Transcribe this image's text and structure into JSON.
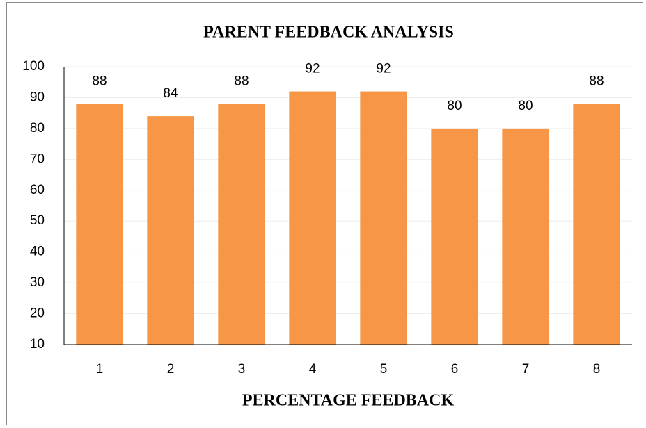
{
  "chart_data": {
    "type": "bar",
    "title": "PARENT FEEDBACK ANALYSIS",
    "x_label": "PERCENTAGE FEEDBACK",
    "categories": [
      "1",
      "2",
      "3",
      "4",
      "5",
      "6",
      "7",
      "8"
    ],
    "values": [
      88,
      84,
      88,
      92,
      92,
      80,
      80,
      88
    ],
    "color": "#f79646",
    "ylim": [
      10,
      100
    ],
    "yticks": [
      10,
      20,
      30,
      40,
      50,
      60,
      70,
      80,
      90,
      100
    ],
    "grid": true,
    "data_labels": true
  }
}
